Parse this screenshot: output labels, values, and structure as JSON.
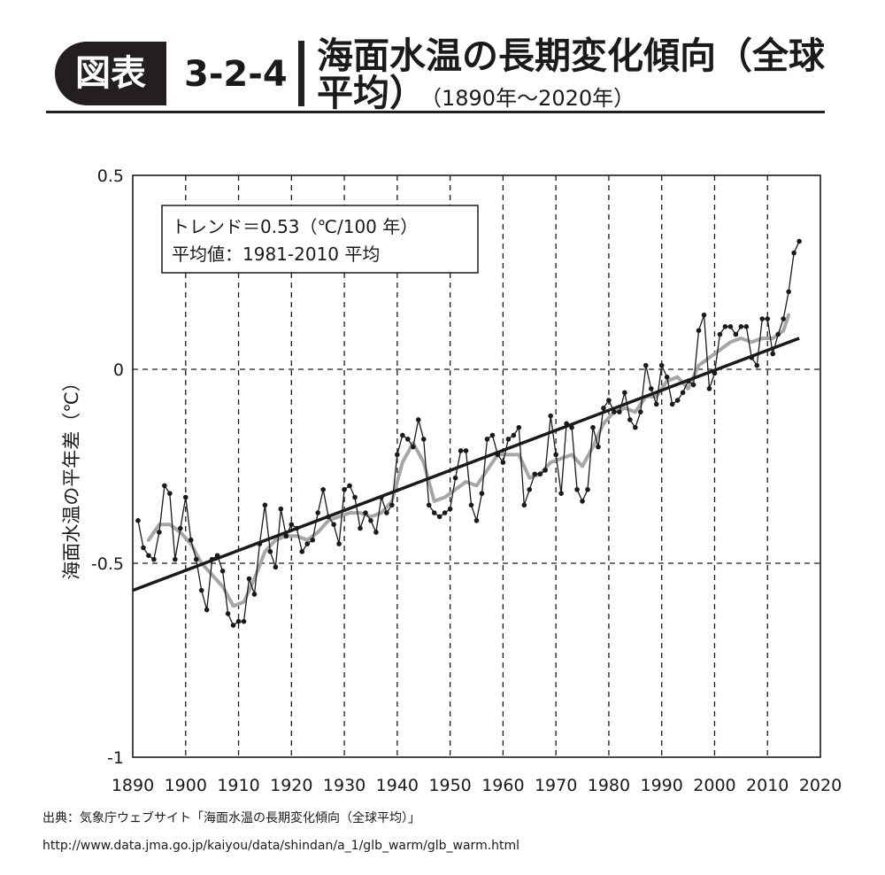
{
  "header": {
    "badge": "図表",
    "figure_number": "3-2-4",
    "title_line1": "海面水温の長期変化傾向（全球",
    "title_line2": "平均）",
    "period": "（1890年〜2020年）"
  },
  "footer": {
    "source": "出典：気象庁ウェブサイト「海面水温の長期変化傾向（全球平均）」",
    "url": "http://www.data.jma.go.jp/kaiyou/data/shindan/a_1/glb_warm/glb_warm.html"
  },
  "colors": {
    "annual_line": "#1a1a1a",
    "smoothed_line": "#a6a6a6",
    "trend_line": "#1a1a1a",
    "grid": "#1a1a1a"
  },
  "chart_data": {
    "type": "line",
    "title": "",
    "xlabel": "",
    "ylabel": "海面水温の平年差（℃）",
    "xlim": [
      1890,
      2020
    ],
    "ylim": [
      -1,
      0.5
    ],
    "x_ticks": [
      1890,
      1900,
      1910,
      1920,
      1930,
      1940,
      1950,
      1960,
      1970,
      1980,
      1990,
      2000,
      2010,
      2020
    ],
    "x_tick_labels": [
      "1890",
      "1900",
      "1910",
      "1920",
      "1930",
      "1940",
      "1950",
      "1960",
      "1970",
      "1980",
      "1990",
      "2000",
      "2010",
      "2020"
    ],
    "y_ticks": [
      0.5,
      0,
      -0.5,
      -1
    ],
    "y_tick_labels": [
      "0.5",
      "0",
      "-0.5",
      "-1"
    ],
    "grid": "dashed",
    "legend_box": {
      "line1": "トレンド＝0.53（℃/100 年）",
      "line2": "平均値：1981-2010 平均",
      "placement": "top-left"
    },
    "series": [
      {
        "role": "annual",
        "x": [
          1891,
          1892,
          1893,
          1894,
          1895,
          1896,
          1897,
          1898,
          1899,
          1900,
          1901,
          1902,
          1903,
          1904,
          1905,
          1906,
          1907,
          1908,
          1909,
          1910,
          1911,
          1912,
          1913,
          1914,
          1915,
          1916,
          1917,
          1918,
          1919,
          1920,
          1921,
          1922,
          1923,
          1924,
          1925,
          1926,
          1927,
          1928,
          1929,
          1930,
          1931,
          1932,
          1933,
          1934,
          1935,
          1936,
          1937,
          1938,
          1939,
          1940,
          1941,
          1942,
          1943,
          1944,
          1945,
          1946,
          1947,
          1948,
          1949,
          1950,
          1951,
          1952,
          1953,
          1954,
          1955,
          1956,
          1957,
          1958,
          1959,
          1960,
          1961,
          1962,
          1963,
          1964,
          1965,
          1966,
          1967,
          1968,
          1969,
          1970,
          1971,
          1972,
          1973,
          1974,
          1975,
          1976,
          1977,
          1978,
          1979,
          1980,
          1981,
          1982,
          1983,
          1984,
          1985,
          1986,
          1987,
          1988,
          1989,
          1990,
          1991,
          1992,
          1993,
          1994,
          1995,
          1996,
          1997,
          1998,
          1999,
          2000,
          2001,
          2002,
          2003,
          2004,
          2005,
          2006,
          2007,
          2008,
          2009,
          2010,
          2011,
          2012,
          2013,
          2014,
          2015,
          2016
        ],
        "values": [
          -0.39,
          -0.46,
          -0.48,
          -0.49,
          -0.42,
          -0.3,
          -0.32,
          -0.49,
          -0.41,
          -0.33,
          -0.44,
          -0.49,
          -0.57,
          -0.62,
          -0.49,
          -0.48,
          -0.52,
          -0.63,
          -0.66,
          -0.65,
          -0.65,
          -0.54,
          -0.58,
          -0.45,
          -0.35,
          -0.47,
          -0.51,
          -0.36,
          -0.43,
          -0.4,
          -0.41,
          -0.47,
          -0.45,
          -0.44,
          -0.37,
          -0.31,
          -0.38,
          -0.4,
          -0.45,
          -0.31,
          -0.3,
          -0.33,
          -0.41,
          -0.37,
          -0.39,
          -0.42,
          -0.33,
          -0.37,
          -0.35,
          -0.22,
          -0.17,
          -0.18,
          -0.2,
          -0.13,
          -0.18,
          -0.35,
          -0.37,
          -0.38,
          -0.37,
          -0.36,
          -0.28,
          -0.21,
          -0.21,
          -0.35,
          -0.39,
          -0.32,
          -0.18,
          -0.17,
          -0.22,
          -0.24,
          -0.18,
          -0.17,
          -0.15,
          -0.35,
          -0.31,
          -0.27,
          -0.27,
          -0.26,
          -0.12,
          -0.22,
          -0.32,
          -0.14,
          -0.15,
          -0.31,
          -0.34,
          -0.31,
          -0.15,
          -0.2,
          -0.1,
          -0.08,
          -0.11,
          -0.11,
          -0.06,
          -0.13,
          -0.15,
          -0.11,
          0.01,
          -0.05,
          -0.09,
          0.01,
          -0.02,
          -0.09,
          -0.08,
          -0.06,
          -0.03,
          -0.04,
          0.1,
          0.14,
          -0.05,
          -0.01,
          0.09,
          0.11,
          0.11,
          0.09,
          0.11,
          0.11,
          0.03,
          0.01,
          0.13,
          0.13,
          0.04,
          0.09,
          0.13,
          0.2,
          0.3,
          0.33
        ]
      },
      {
        "role": "smoothed",
        "x": [
          1893,
          1895,
          1897,
          1899,
          1901,
          1903,
          1905,
          1907,
          1909,
          1911,
          1913,
          1915,
          1917,
          1919,
          1921,
          1923,
          1925,
          1927,
          1929,
          1931,
          1933,
          1935,
          1937,
          1939,
          1941,
          1943,
          1945,
          1947,
          1949,
          1951,
          1953,
          1955,
          1957,
          1959,
          1961,
          1963,
          1965,
          1967,
          1969,
          1971,
          1973,
          1975,
          1977,
          1979,
          1981,
          1983,
          1985,
          1987,
          1989,
          1991,
          1993,
          1995,
          1997,
          1999,
          2001,
          2003,
          2005,
          2007,
          2009,
          2011,
          2013,
          2014
        ],
        "values": [
          -0.44,
          -0.4,
          -0.4,
          -0.42,
          -0.45,
          -0.5,
          -0.53,
          -0.56,
          -0.61,
          -0.6,
          -0.54,
          -0.47,
          -0.44,
          -0.43,
          -0.43,
          -0.44,
          -0.42,
          -0.39,
          -0.38,
          -0.37,
          -0.37,
          -0.38,
          -0.37,
          -0.34,
          -0.24,
          -0.19,
          -0.24,
          -0.34,
          -0.33,
          -0.31,
          -0.29,
          -0.3,
          -0.26,
          -0.22,
          -0.22,
          -0.22,
          -0.28,
          -0.27,
          -0.24,
          -0.23,
          -0.22,
          -0.25,
          -0.2,
          -0.14,
          -0.11,
          -0.1,
          -0.11,
          -0.07,
          -0.07,
          -0.03,
          -0.02,
          -0.05,
          0.01,
          0.03,
          0.05,
          0.07,
          0.08,
          0.07,
          0.08,
          0.08,
          0.1,
          0.14
        ]
      },
      {
        "role": "trend",
        "x": [
          1890,
          2016
        ],
        "values": [
          -0.57,
          0.08
        ]
      }
    ]
  }
}
